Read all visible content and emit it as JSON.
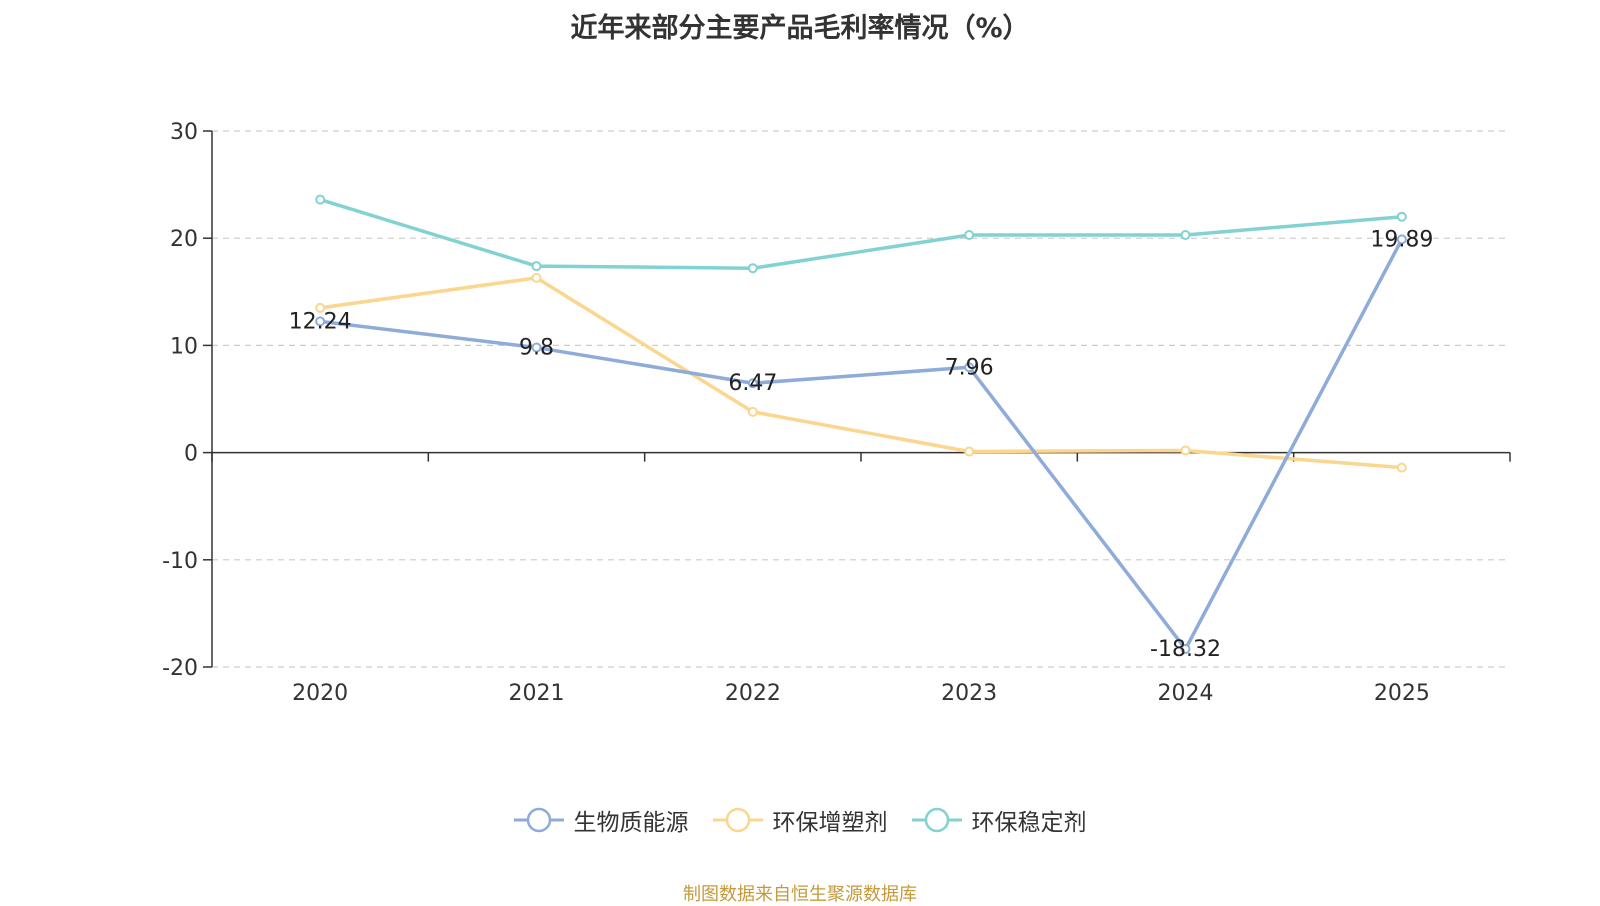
{
  "colors": {
    "s0": "#8eabd9",
    "s1": "#fad68f",
    "s2": "#82d2d2",
    "axis": "#333333",
    "grid": "#cccccc",
    "source": "#c49a3c"
  },
  "chart_data": {
    "type": "line",
    "title": "近年来部分主要产品毛利率情况（%）",
    "x": [
      "2020",
      "2021",
      "2022",
      "2023",
      "2024",
      "2025"
    ],
    "ylim": [
      -20,
      30
    ],
    "yticks": [
      -20,
      -10,
      0,
      10,
      20,
      30
    ],
    "grid": true,
    "legend_position": "bottom",
    "series": [
      {
        "name": "生物质能源",
        "values": [
          12.24,
          9.8,
          6.47,
          7.96,
          -18.32,
          19.89
        ],
        "labels": [
          "12.24",
          "9.8",
          "6.47",
          "7.96",
          "-18.32",
          "19.89"
        ]
      },
      {
        "name": "环保增塑剂",
        "values": [
          13.5,
          16.3,
          3.8,
          0.1,
          0.2,
          -1.4
        ]
      },
      {
        "name": "环保稳定剂",
        "values": [
          23.6,
          17.4,
          17.2,
          20.3,
          20.3,
          22.0
        ]
      }
    ]
  },
  "source": "制图数据来自恒生聚源数据库"
}
